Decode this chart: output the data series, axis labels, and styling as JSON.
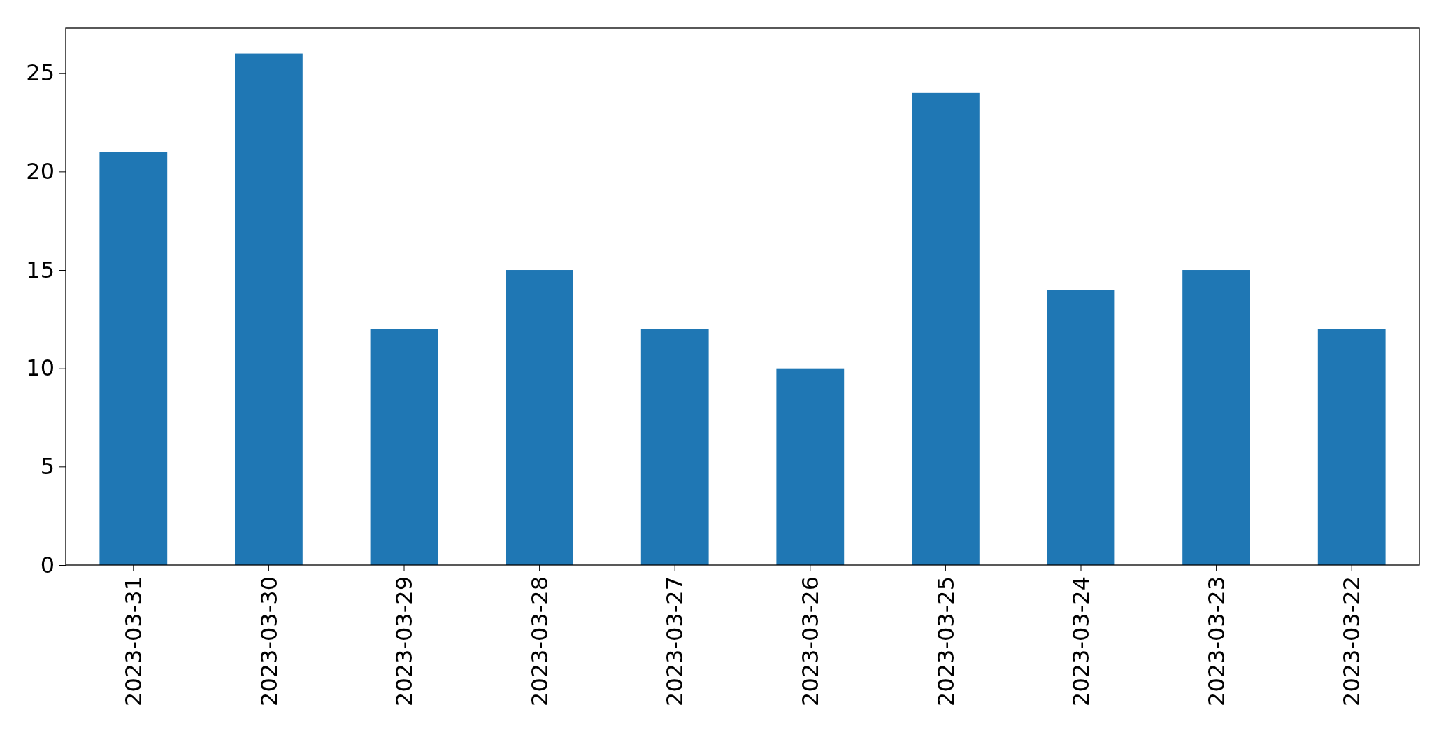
{
  "chart_data": {
    "type": "bar",
    "categories": [
      "2023-03-31",
      "2023-03-30",
      "2023-03-29",
      "2023-03-28",
      "2023-03-27",
      "2023-03-26",
      "2023-03-25",
      "2023-03-24",
      "2023-03-23",
      "2023-03-22"
    ],
    "values": [
      21,
      26,
      12,
      15,
      12,
      10,
      24,
      14,
      15,
      12
    ],
    "color": "#1f77b4",
    "ylim": [
      0,
      27.3
    ],
    "yticks": [
      0,
      5,
      10,
      15,
      20,
      25
    ],
    "grid": false
  }
}
